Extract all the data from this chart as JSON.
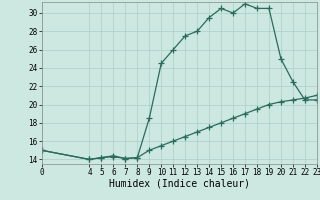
{
  "xlabel": "Humidex (Indice chaleur)",
  "background_color": "#cce8e0",
  "grid_color": "#aacfc8",
  "line_color": "#2a6b5e",
  "xlim": [
    0,
    23
  ],
  "ylim": [
    13.5,
    31.2
  ],
  "xticks": [
    0,
    4,
    5,
    6,
    7,
    8,
    9,
    10,
    11,
    12,
    13,
    14,
    15,
    16,
    17,
    18,
    19,
    20,
    21,
    22,
    23
  ],
  "yticks": [
    14,
    16,
    18,
    20,
    22,
    24,
    26,
    28,
    30
  ],
  "curve1_x": [
    0,
    4,
    5,
    6,
    7,
    8,
    9,
    10,
    11,
    12,
    13,
    14,
    15,
    16,
    17,
    18,
    19,
    20,
    21,
    22,
    23
  ],
  "curve1_y": [
    15.0,
    14.0,
    14.2,
    14.3,
    14.1,
    14.2,
    18.5,
    24.5,
    26.0,
    27.5,
    28.0,
    29.5,
    30.5,
    30.0,
    31.0,
    30.5,
    30.5,
    25.0,
    22.5,
    20.5,
    20.5
  ],
  "curve2_x": [
    0,
    4,
    5,
    6,
    7,
    8,
    9,
    10,
    11,
    12,
    13,
    14,
    15,
    16,
    17,
    18,
    19,
    20,
    21,
    22,
    23
  ],
  "curve2_y": [
    15.0,
    14.0,
    14.2,
    14.4,
    14.1,
    14.2,
    15.0,
    15.5,
    16.0,
    16.5,
    17.0,
    17.5,
    18.0,
    18.5,
    19.0,
    19.5,
    20.0,
    20.3,
    20.5,
    20.7,
    21.0
  ]
}
